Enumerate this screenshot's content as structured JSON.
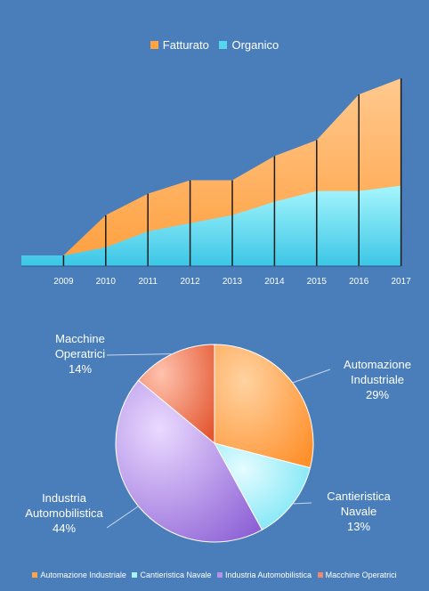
{
  "colors": {
    "background": "#4a7ebb",
    "fatturato": "#ffb36b",
    "organico": "#7fe9f7",
    "automazione": "#ffa347",
    "cantieristica": "#a8f2fb",
    "automobilistica": "#b394ea",
    "macchine": "#f2876a"
  },
  "chart_data": [
    {
      "type": "area",
      "title": "",
      "xlabel": "",
      "ylabel": "",
      "x": [
        "",
        "2009",
        "2010",
        "2011",
        "2012",
        "2013",
        "2014",
        "2015",
        "2016",
        "2017"
      ],
      "series": [
        {
          "name": "Fatturato",
          "values": [
            4,
            4,
            19,
            27,
            32,
            32,
            41,
            47,
            64,
            70
          ]
        },
        {
          "name": "Organico",
          "values": [
            4,
            4,
            7,
            13,
            16,
            19,
            24,
            28,
            28,
            30
          ]
        }
      ],
      "ylim": [
        0,
        72
      ],
      "legend": "top",
      "grid": false
    },
    {
      "type": "pie",
      "title": "",
      "categories": [
        "Automazione Industriale",
        "Cantieristica Navale",
        "Industria Automobilistica",
        "Macchine Operatrici"
      ],
      "values": [
        29,
        13,
        44,
        14
      ],
      "labels": [
        {
          "lines": [
            "Automazione",
            "Industriale",
            "29%"
          ]
        },
        {
          "lines": [
            "Cantieristica",
            "Navale",
            "13%"
          ]
        },
        {
          "lines": [
            "Industria",
            "Automobilistica",
            "44%"
          ]
        },
        {
          "lines": [
            "Macchine",
            "Operatrici",
            "14%"
          ]
        }
      ],
      "legend": "bottom"
    }
  ]
}
